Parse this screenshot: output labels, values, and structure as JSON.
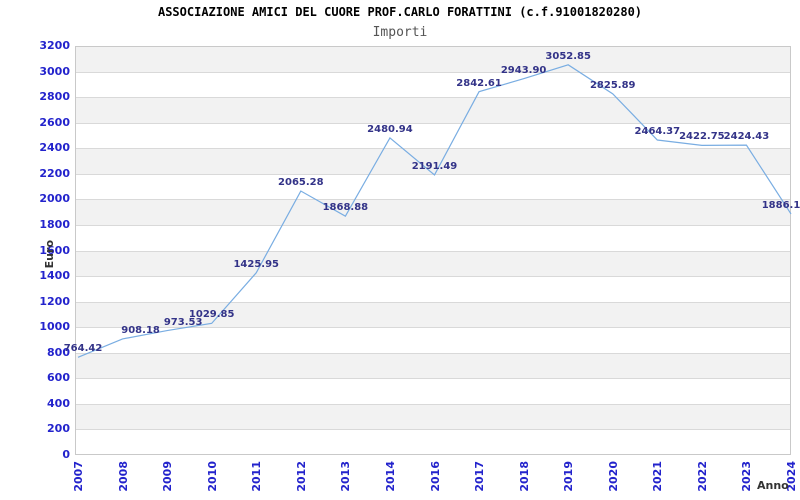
{
  "header": {
    "title": "ASSOCIAZIONE AMICI DEL CUORE PROF.CARLO FORATTINI (c.f.91001820280)",
    "subtitle": "Importi"
  },
  "chart_data": {
    "type": "line",
    "title": "ASSOCIAZIONE AMICI DEL CUORE PROF.CARLO FORATTINI (c.f.91001820280)",
    "subtitle": "Importi",
    "xlabel": "Anno",
    "ylabel": "Euro",
    "categories": [
      "2007",
      "2008",
      "2009",
      "2010",
      "2011",
      "2012",
      "2013",
      "2014",
      "2016",
      "2017",
      "2018",
      "2019",
      "2020",
      "2021",
      "2022",
      "2023",
      "2024"
    ],
    "series": [
      {
        "name": "Importi",
        "values": [
          764.42,
          908.18,
          973.53,
          1029.85,
          1425.95,
          2065.28,
          1868.88,
          2480.94,
          2191.49,
          2842.61,
          2943.9,
          3052.85,
          2825.89,
          2464.37,
          2422.75,
          2424.43,
          1886.1
        ],
        "point_labels": [
          "764.42",
          "908.18",
          "973.53",
          "1029.85",
          "1425.95",
          "2065.28",
          "1868.88",
          "2480.94",
          "2191.49",
          "2842.61",
          "2943.90",
          "3052.85",
          "2825.89",
          "2464.37",
          "2422.75",
          "2424.43",
          "1886.1"
        ]
      }
    ],
    "ylim": [
      0,
      3200
    ],
    "ytick_step": 200,
    "grid": "horizontal alternating bands",
    "legend": "none",
    "colors": {
      "line": "#79ade2",
      "point_label": "#333388",
      "tick_label": "#2323cc",
      "band": "#f2f2f2",
      "band_alt": "#ffffff",
      "gridline": "#d9d9d9",
      "plot_border": "#c9c9c9",
      "title": "#000000",
      "subtitle": "#555555",
      "axis_title": "#333333"
    }
  }
}
